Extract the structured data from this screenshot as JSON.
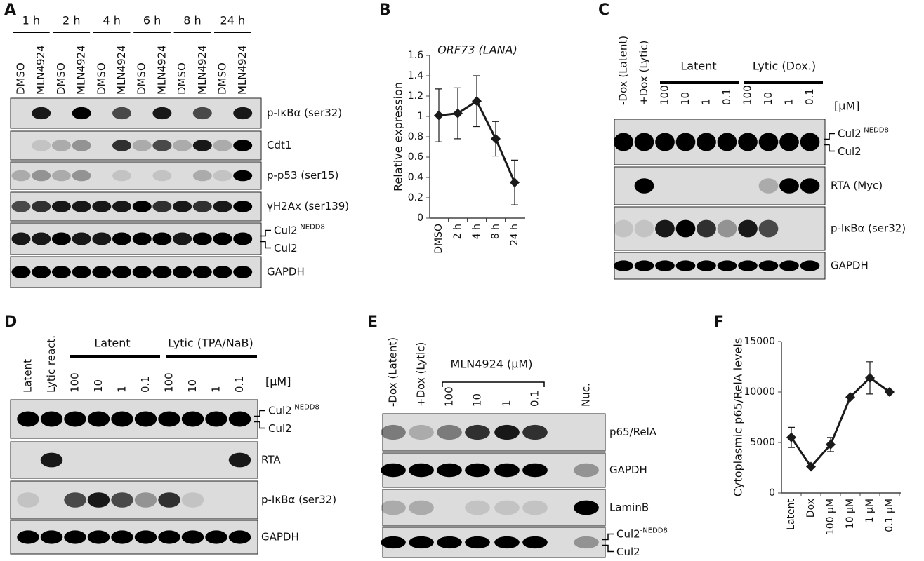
{
  "panels": {
    "A": {
      "letter": "A",
      "timepoints": [
        "1 h",
        "2 h",
        "4 h",
        "6 h",
        "8 h",
        "24 h"
      ],
      "lanes": [
        "DMSO",
        "MLN4924",
        "DMSO",
        "MLN4924",
        "DMSO",
        "MLN4924",
        "DMSO",
        "MLN4924",
        "DMSO",
        "MLN4924",
        "DMSO",
        "MLN4924"
      ],
      "blots": [
        {
          "label": "p-IκBα (ser32)"
        },
        {
          "label": "Cdt1"
        },
        {
          "label": "p-p53 (ser15)"
        },
        {
          "label": "γH2Ax (ser139)"
        },
        {
          "upper": "Cul2",
          "superscript": "-NEDD8",
          "lower": "Cul2"
        },
        {
          "label": "GAPDH"
        }
      ]
    },
    "C": {
      "letter": "C",
      "lanes": [
        "-Dox (Latent)",
        "+Dox (Lytic)",
        "100",
        "10",
        "1",
        "0.1",
        "100",
        "10",
        "1",
        "0.1"
      ],
      "groups": [
        "Latent",
        "Lytic (Dox.)"
      ],
      "unit": "[μM]",
      "blots": [
        {
          "upper": "Cul2",
          "superscript": "-NEDD8",
          "lower": "Cul2"
        },
        {
          "label": "RTA (Myc)"
        },
        {
          "label": "p-IκBα (ser32)"
        },
        {
          "label": "GAPDH"
        }
      ]
    },
    "D": {
      "letter": "D",
      "lanes": [
        "Latent",
        "Lytic react.",
        "100",
        "10",
        "1",
        "0.1",
        "100",
        "10",
        "1",
        "0.1"
      ],
      "groups": [
        "Latent",
        "Lytic (TPA/NaB)"
      ],
      "unit": "[μM]",
      "blots": [
        {
          "upper": "Cul2",
          "superscript": "-NEDD8",
          "lower": "Cul2"
        },
        {
          "label": "RTA"
        },
        {
          "label": "p-IκBα (ser32)"
        },
        {
          "label": "GAPDH"
        }
      ]
    },
    "E": {
      "letter": "E",
      "lanes": [
        "-Dox (Latent)",
        "+Dox (Lytic)",
        "100",
        "10",
        "1",
        "0.1",
        "Nuc."
      ],
      "groups": [
        "MLN4924 (μM)"
      ],
      "blots": [
        {
          "label": "p65/RelA"
        },
        {
          "label": "GAPDH"
        },
        {
          "label": "LaminB"
        },
        {
          "upper": "Cul2",
          "superscript": "-NEDD8",
          "lower": "Cul2"
        }
      ]
    },
    "B": {
      "letter": "B"
    },
    "F": {
      "letter": "F"
    }
  },
  "chart_data": [
    {
      "type": "line",
      "title": "ORF73 (LANA)",
      "y_label": "Relative expression",
      "categories": [
        "DMSO",
        "2 h",
        "4 h",
        "8 h",
        "24 h"
      ],
      "values": [
        1.01,
        1.03,
        1.15,
        0.78,
        0.35
      ],
      "errors": [
        0.26,
        0.25,
        0.25,
        0.17,
        0.22
      ],
      "color": "#1a1a1a",
      "marker": "diamond",
      "ylim": [
        0,
        1.6
      ],
      "yticks": [
        0,
        0.2,
        0.4,
        0.6,
        0.8,
        1,
        1.2,
        1.4,
        1.6
      ]
    },
    {
      "type": "line",
      "y_label": "Cytoplasmic p65/RelA levels",
      "categories": [
        "Latent",
        "Dox",
        "100 μM",
        "10 μM",
        "1 μM",
        "0.1 μM"
      ],
      "values": [
        5500,
        2600,
        4800,
        9500,
        11400,
        10000
      ],
      "errors": [
        1000,
        null,
        700,
        null,
        1600,
        null
      ],
      "color": "#1a1a1a",
      "marker": "diamond",
      "ylim": [
        0,
        15000
      ],
      "yticks": [
        0,
        5000,
        10000,
        15000
      ]
    }
  ]
}
